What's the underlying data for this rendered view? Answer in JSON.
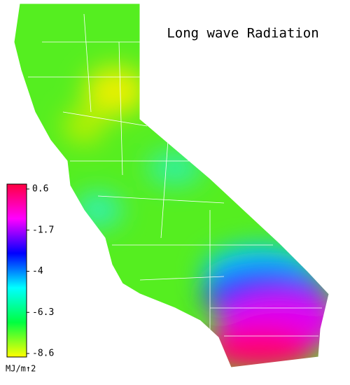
{
  "title": "Long wave Radiation",
  "colorbar": {
    "lim": [
      -8.6,
      0.6
    ],
    "ticks": [
      0.6,
      -1.7,
      -4.0,
      -6.3,
      -8.6
    ],
    "unit": "MJ/m↑2",
    "colors": [
      "#ff0040",
      "#ff00ff",
      "#0000ff",
      "#00ffff",
      "#00ff40",
      "#ffff00"
    ]
  }
}
